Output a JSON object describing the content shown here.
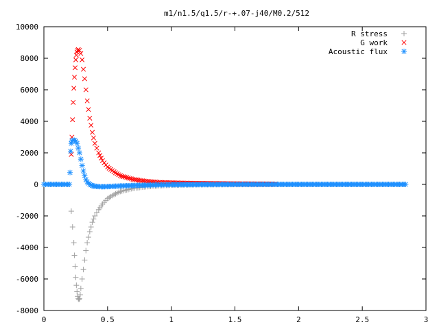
{
  "chart_data": {
    "type": "scatter",
    "title": "m1/n1.5/q1.5/r-+.07-j40/M0.2/512",
    "xlabel": "",
    "ylabel": "",
    "xlim": [
      0,
      3
    ],
    "ylim": [
      -8000,
      10000
    ],
    "xticks": [
      0,
      0.5,
      1,
      1.5,
      2,
      2.5,
      3
    ],
    "yticks": [
      -8000,
      -6000,
      -4000,
      -2000,
      0,
      2000,
      4000,
      6000,
      8000,
      10000
    ],
    "xtick_labels": [
      "0",
      "0.5",
      "1",
      "1.5",
      "2",
      "2.5",
      "3"
    ],
    "ytick_labels": [
      "-8000",
      "-6000",
      "-4000",
      "-2000",
      "0",
      "2000",
      "4000",
      "6000",
      "8000",
      "10000"
    ],
    "grid": false,
    "legend_position": "top-right",
    "series": [
      {
        "name": "R stress",
        "marker": "plus",
        "color": "#a0a0a0",
        "points": [
          [
            0.0,
            0
          ],
          [
            0.05,
            0
          ],
          [
            0.1,
            0
          ],
          [
            0.15,
            0
          ],
          [
            0.2,
            0
          ],
          [
            0.215,
            -1700
          ],
          [
            0.225,
            -2700
          ],
          [
            0.235,
            -3700
          ],
          [
            0.24,
            -4500
          ],
          [
            0.245,
            -5200
          ],
          [
            0.25,
            -5900
          ],
          [
            0.255,
            -6400
          ],
          [
            0.26,
            -6800
          ],
          [
            0.265,
            -7100
          ],
          [
            0.27,
            -7250
          ],
          [
            0.275,
            -7300
          ],
          [
            0.28,
            -7250
          ],
          [
            0.285,
            -7000
          ],
          [
            0.29,
            -6600
          ],
          [
            0.3,
            -6000
          ],
          [
            0.31,
            -5400
          ],
          [
            0.32,
            -4800
          ],
          [
            0.33,
            -4200
          ],
          [
            0.34,
            -3700
          ],
          [
            0.36,
            -3000
          ],
          [
            0.38,
            -2400
          ],
          [
            0.4,
            -2000
          ],
          [
            0.43,
            -1600
          ],
          [
            0.46,
            -1250
          ],
          [
            0.5,
            -900
          ],
          [
            0.55,
            -650
          ],
          [
            0.6,
            -450
          ],
          [
            0.7,
            -250
          ],
          [
            0.8,
            -150
          ],
          [
            0.9,
            -90
          ],
          [
            1.0,
            -50
          ],
          [
            1.2,
            -20
          ],
          [
            1.5,
            -8
          ],
          [
            2.0,
            0
          ],
          [
            2.5,
            0
          ],
          [
            2.84,
            0
          ]
        ]
      },
      {
        "name": "G work",
        "marker": "cross",
        "color": "#ff0000",
        "points": [
          [
            0.215,
            1900
          ],
          [
            0.22,
            3000
          ],
          [
            0.225,
            4100
          ],
          [
            0.23,
            5200
          ],
          [
            0.235,
            6100
          ],
          [
            0.24,
            6800
          ],
          [
            0.245,
            7400
          ],
          [
            0.25,
            7900
          ],
          [
            0.255,
            8200
          ],
          [
            0.26,
            8400
          ],
          [
            0.265,
            8500
          ],
          [
            0.27,
            8550
          ],
          [
            0.28,
            8500
          ],
          [
            0.29,
            8300
          ],
          [
            0.3,
            7900
          ],
          [
            0.31,
            7300
          ],
          [
            0.32,
            6700
          ],
          [
            0.33,
            6000
          ],
          [
            0.34,
            5300
          ],
          [
            0.36,
            4200
          ],
          [
            0.38,
            3300
          ],
          [
            0.4,
            2600
          ],
          [
            0.43,
            2000
          ],
          [
            0.46,
            1500
          ],
          [
            0.5,
            1100
          ],
          [
            0.55,
            800
          ],
          [
            0.6,
            550
          ],
          [
            0.7,
            320
          ],
          [
            0.8,
            200
          ],
          [
            0.9,
            130
          ],
          [
            1.0,
            100
          ],
          [
            1.2,
            70
          ],
          [
            1.5,
            45
          ],
          [
            1.82,
            30
          ]
        ]
      },
      {
        "name": "Acoustic flux",
        "marker": "star",
        "color": "#1e90ff",
        "points": [
          [
            0.0,
            0
          ],
          [
            0.05,
            0
          ],
          [
            0.1,
            0
          ],
          [
            0.15,
            0
          ],
          [
            0.2,
            0
          ],
          [
            0.205,
            750
          ],
          [
            0.21,
            2100
          ],
          [
            0.215,
            2600
          ],
          [
            0.22,
            2750
          ],
          [
            0.23,
            2800
          ],
          [
            0.24,
            2800
          ],
          [
            0.25,
            2750
          ],
          [
            0.26,
            2600
          ],
          [
            0.27,
            2300
          ],
          [
            0.28,
            2000
          ],
          [
            0.29,
            1600
          ],
          [
            0.3,
            1200
          ],
          [
            0.31,
            850
          ],
          [
            0.32,
            550
          ],
          [
            0.33,
            300
          ],
          [
            0.34,
            150
          ],
          [
            0.36,
            0
          ],
          [
            0.38,
            -80
          ],
          [
            0.4,
            -120
          ],
          [
            0.45,
            -150
          ],
          [
            0.5,
            -140
          ],
          [
            0.55,
            -120
          ],
          [
            0.6,
            -100
          ],
          [
            0.7,
            -70
          ],
          [
            0.8,
            -50
          ],
          [
            0.9,
            -30
          ],
          [
            1.0,
            -20
          ],
          [
            1.2,
            -10
          ],
          [
            1.5,
            0
          ],
          [
            2.0,
            0
          ],
          [
            2.5,
            0
          ],
          [
            2.84,
            0
          ]
        ]
      }
    ]
  }
}
